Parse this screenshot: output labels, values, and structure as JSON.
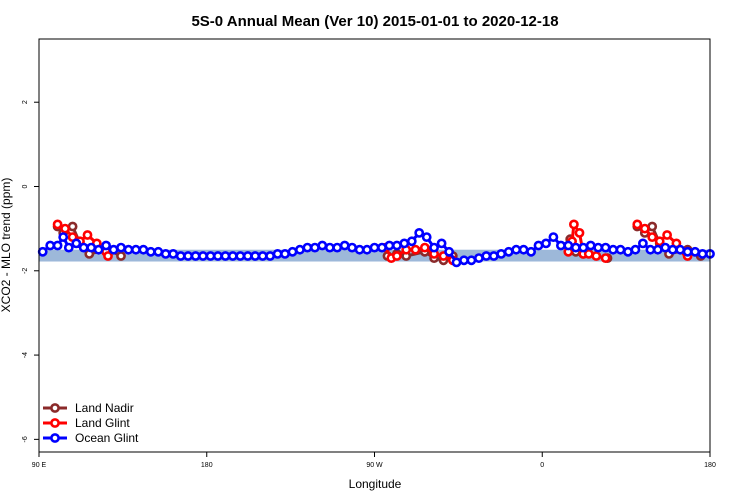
{
  "chart_data": {
    "type": "line",
    "title": "5S-0 Annual Mean (Ver 10)   2015-01-01 to 2020-12-18",
    "xlabel": "Longitude",
    "ylabel": "XCO2 - MLO trend (ppm)",
    "xlim": [
      90,
      450
    ],
    "ylim": [
      -6.3,
      3.5
    ],
    "x_ticks": [
      {
        "value": 90,
        "label": "90 E"
      },
      {
        "value": 180,
        "label": "180"
      },
      {
        "value": 270,
        "label": "90 W"
      },
      {
        "value": 360,
        "label": "0"
      },
      {
        "value": 450,
        "label": "180"
      }
    ],
    "y_ticks": [
      {
        "value": 2,
        "label": "2"
      },
      {
        "value": 0,
        "label": "0"
      },
      {
        "value": -2,
        "label": "-2"
      },
      {
        "value": -4,
        "label": "-4"
      },
      {
        "value": -6,
        "label": "-6"
      }
    ],
    "band": {
      "y_low": -1.78,
      "y_high": -1.5,
      "color": "#9db8d9"
    },
    "legend_position": "bottom-left",
    "series": [
      {
        "name": "Land Nadir",
        "color": "#8b2a2a",
        "points": [
          [
            100,
            -0.95
          ],
          [
            103,
            -1.1
          ],
          [
            108,
            -0.95
          ],
          [
            112,
            -1.35
          ],
          [
            117,
            -1.6
          ],
          [
            127,
            -1.5
          ],
          [
            134,
            -1.65
          ],
          [
            277,
            -1.65
          ],
          [
            282,
            -1.6
          ],
          [
            287,
            -1.65
          ],
          [
            297,
            -1.55
          ],
          [
            302,
            -1.7
          ],
          [
            307,
            -1.75
          ],
          [
            312,
            -1.65
          ],
          [
            375,
            -1.25
          ],
          [
            378,
            -1.55
          ],
          [
            382,
            -1.6
          ],
          [
            395,
            -1.7
          ],
          [
            411,
            -0.95
          ],
          [
            415,
            -1.1
          ],
          [
            419,
            -0.95
          ],
          [
            423,
            -1.35
          ],
          [
            428,
            -1.6
          ],
          [
            438,
            -1.5
          ],
          [
            445,
            -1.65
          ]
        ]
      },
      {
        "name": "Land Glint",
        "color": "#ff0000",
        "points": [
          [
            100,
            -0.9
          ],
          [
            104,
            -1.0
          ],
          [
            108,
            -1.2
          ],
          [
            112,
            -1.3
          ],
          [
            116,
            -1.15
          ],
          [
            121,
            -1.35
          ],
          [
            126,
            -1.55
          ],
          [
            127,
            -1.65
          ],
          [
            276,
            -1.45
          ],
          [
            279,
            -1.7
          ],
          [
            282,
            -1.65
          ],
          [
            287,
            -1.5
          ],
          [
            292,
            -1.5
          ],
          [
            297,
            -1.45
          ],
          [
            302,
            -1.6
          ],
          [
            307,
            -1.65
          ],
          [
            312,
            -1.75
          ],
          [
            374,
            -1.55
          ],
          [
            376,
            -1.3
          ],
          [
            377,
            -0.9
          ],
          [
            380,
            -1.1
          ],
          [
            382,
            -1.6
          ],
          [
            385,
            -1.6
          ],
          [
            389,
            -1.65
          ],
          [
            394,
            -1.7
          ],
          [
            411,
            -0.9
          ],
          [
            415,
            -1.0
          ],
          [
            419,
            -1.2
          ],
          [
            423,
            -1.3
          ],
          [
            427,
            -1.15
          ],
          [
            432,
            -1.35
          ],
          [
            437,
            -1.55
          ],
          [
            438,
            -1.65
          ]
        ]
      },
      {
        "name": "Ocean Glint",
        "color": "#0000ff",
        "points": [
          [
            92,
            -1.55
          ],
          [
            96,
            -1.4
          ],
          [
            100,
            -1.4
          ],
          [
            103,
            -1.2
          ],
          [
            106,
            -1.45
          ],
          [
            110,
            -1.35
          ],
          [
            114,
            -1.45
          ],
          [
            118,
            -1.45
          ],
          [
            122,
            -1.5
          ],
          [
            126,
            -1.4
          ],
          [
            130,
            -1.5
          ],
          [
            134,
            -1.45
          ],
          [
            138,
            -1.5
          ],
          [
            142,
            -1.5
          ],
          [
            146,
            -1.5
          ],
          [
            150,
            -1.55
          ],
          [
            154,
            -1.55
          ],
          [
            158,
            -1.6
          ],
          [
            162,
            -1.6
          ],
          [
            166,
            -1.65
          ],
          [
            170,
            -1.65
          ],
          [
            174,
            -1.65
          ],
          [
            178,
            -1.65
          ],
          [
            182,
            -1.65
          ],
          [
            186,
            -1.65
          ],
          [
            190,
            -1.65
          ],
          [
            194,
            -1.65
          ],
          [
            198,
            -1.65
          ],
          [
            202,
            -1.65
          ],
          [
            206,
            -1.65
          ],
          [
            210,
            -1.65
          ],
          [
            214,
            -1.65
          ],
          [
            218,
            -1.6
          ],
          [
            222,
            -1.6
          ],
          [
            226,
            -1.55
          ],
          [
            230,
            -1.5
          ],
          [
            234,
            -1.45
          ],
          [
            238,
            -1.45
          ],
          [
            242,
            -1.4
          ],
          [
            246,
            -1.45
          ],
          [
            250,
            -1.45
          ],
          [
            254,
            -1.4
          ],
          [
            258,
            -1.45
          ],
          [
            262,
            -1.5
          ],
          [
            266,
            -1.5
          ],
          [
            270,
            -1.45
          ],
          [
            274,
            -1.45
          ],
          [
            278,
            -1.4
          ],
          [
            282,
            -1.4
          ],
          [
            286,
            -1.35
          ],
          [
            290,
            -1.3
          ],
          [
            294,
            -1.1
          ],
          [
            298,
            -1.2
          ],
          [
            302,
            -1.45
          ],
          [
            306,
            -1.35
          ],
          [
            310,
            -1.55
          ],
          [
            314,
            -1.8
          ],
          [
            318,
            -1.75
          ],
          [
            322,
            -1.75
          ],
          [
            326,
            -1.7
          ],
          [
            330,
            -1.65
          ],
          [
            334,
            -1.65
          ],
          [
            338,
            -1.6
          ],
          [
            342,
            -1.55
          ],
          [
            346,
            -1.5
          ],
          [
            350,
            -1.5
          ],
          [
            354,
            -1.55
          ],
          [
            358,
            -1.4
          ],
          [
            362,
            -1.35
          ],
          [
            366,
            -1.2
          ],
          [
            370,
            -1.4
          ],
          [
            374,
            -1.4
          ],
          [
            378,
            -1.45
          ],
          [
            382,
            -1.45
          ],
          [
            386,
            -1.4
          ],
          [
            390,
            -1.45
          ],
          [
            394,
            -1.45
          ],
          [
            398,
            -1.5
          ],
          [
            402,
            -1.5
          ],
          [
            406,
            -1.55
          ],
          [
            410,
            -1.5
          ],
          [
            414,
            -1.35
          ],
          [
            418,
            -1.5
          ],
          [
            422,
            -1.5
          ],
          [
            426,
            -1.45
          ],
          [
            430,
            -1.5
          ],
          [
            434,
            -1.5
          ],
          [
            438,
            -1.55
          ],
          [
            442,
            -1.55
          ],
          [
            446,
            -1.6
          ],
          [
            450,
            -1.6
          ]
        ]
      }
    ]
  }
}
